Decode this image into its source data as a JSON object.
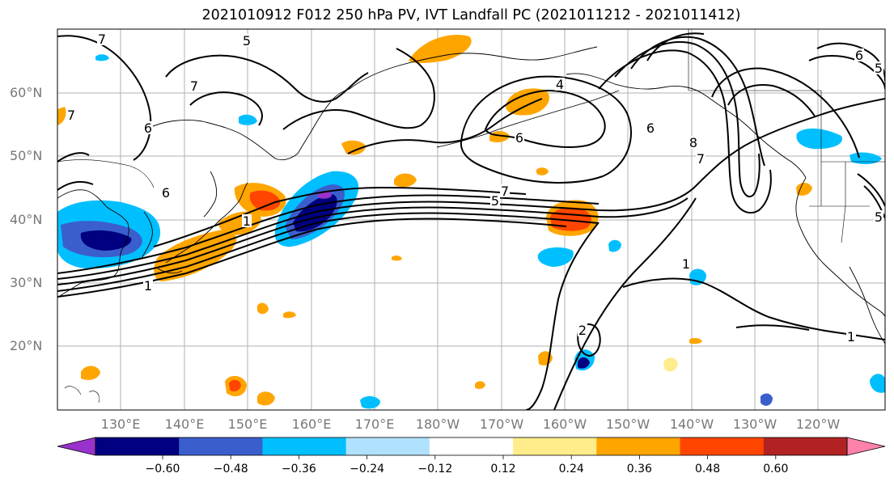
{
  "title": "2021010912 F012 250 hPa PV, IVT Landfall PC (2021011212 - 2021011412)",
  "map": {
    "lat_labels": [
      "60°N",
      "50°N",
      "40°N",
      "30°N",
      "20°N"
    ],
    "lon_labels": [
      "130°E",
      "140°E",
      "150°E",
      "160°E",
      "170°E",
      "180°W",
      "170°W",
      "160°W",
      "150°W",
      "140°W",
      "130°W",
      "120°W"
    ],
    "contour_labels": [
      {
        "text": "7"
      },
      {
        "text": "5"
      },
      {
        "text": "7"
      },
      {
        "text": "7"
      },
      {
        "text": "6"
      },
      {
        "text": "4"
      },
      {
        "text": "6"
      },
      {
        "text": "7"
      },
      {
        "text": "5"
      },
      {
        "text": "1"
      },
      {
        "text": "6"
      },
      {
        "text": "8"
      },
      {
        "text": "7"
      },
      {
        "text": "1"
      },
      {
        "text": "2"
      },
      {
        "text": "1"
      },
      {
        "text": "5"
      },
      {
        "text": "6"
      },
      {
        "text": "5"
      },
      {
        "text": "1"
      },
      {
        "text": "6"
      }
    ],
    "colors": {
      "grid": "#b0b0b0",
      "contour": "#000000",
      "coast": "#000000"
    }
  },
  "colorbar": {
    "colors": [
      "#9932cc",
      "#000080",
      "#3a5fcd",
      "#00bfff",
      "#b0e2ff",
      "#ffffff",
      "#ffec8b",
      "#ffa500",
      "#ff4500",
      "#b22222",
      "#ff82ab"
    ],
    "ticks": [
      "−0.60",
      "−0.48",
      "−0.36",
      "−0.24",
      "−0.12",
      "0.12",
      "0.24",
      "0.36",
      "0.48",
      "0.60"
    ]
  }
}
